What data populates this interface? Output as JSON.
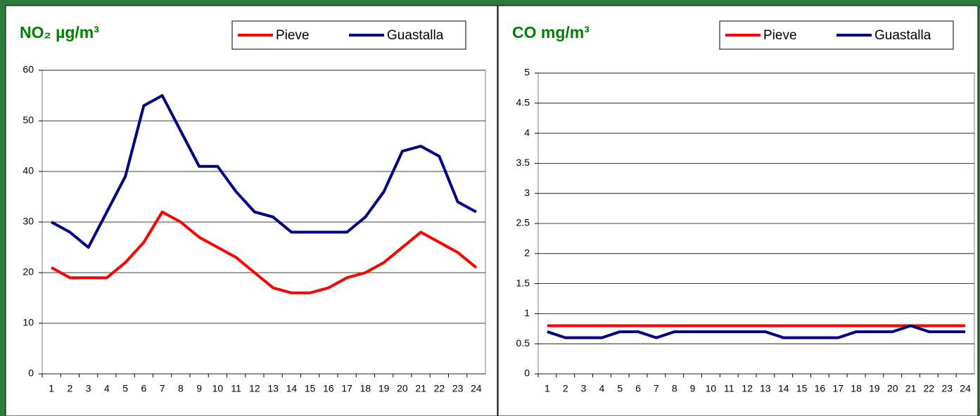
{
  "chart_data": [
    {
      "type": "line",
      "title": "NO₂ µg/m³",
      "categories": [
        "1",
        "2",
        "3",
        "4",
        "5",
        "6",
        "7",
        "8",
        "9",
        "10",
        "11",
        "12",
        "13",
        "14",
        "15",
        "16",
        "17",
        "18",
        "19",
        "20",
        "21",
        "22",
        "23",
        "24"
      ],
      "series": [
        {
          "name": "Pieve",
          "color": "#ff0000",
          "values": [
            21,
            19,
            19,
            19,
            22,
            26,
            32,
            30,
            27,
            25,
            23,
            20,
            17,
            16,
            16,
            17,
            19,
            20,
            22,
            25,
            28,
            26,
            24,
            21
          ]
        },
        {
          "name": "Guastalla",
          "color": "#000080",
          "values": [
            30,
            28,
            25,
            32,
            39,
            53,
            55,
            48,
            41,
            41,
            36,
            32,
            31,
            28,
            28,
            28,
            28,
            31,
            36,
            44,
            45,
            43,
            34,
            32
          ]
        }
      ],
      "ylim": [
        0,
        60
      ],
      "yticks": [
        0,
        10,
        20,
        30,
        40,
        50,
        60
      ],
      "grid": true,
      "legend": "top-right"
    },
    {
      "type": "line",
      "title": "CO mg/m³",
      "categories": [
        "1",
        "2",
        "3",
        "4",
        "5",
        "6",
        "7",
        "8",
        "9",
        "10",
        "11",
        "12",
        "13",
        "14",
        "15",
        "16",
        "17",
        "18",
        "19",
        "20",
        "21",
        "22",
        "23",
        "24"
      ],
      "series": [
        {
          "name": "Pieve",
          "color": "#ff0000",
          "values": [
            0.8,
            0.8,
            0.8,
            0.8,
            0.8,
            0.8,
            0.8,
            0.8,
            0.8,
            0.8,
            0.8,
            0.8,
            0.8,
            0.8,
            0.8,
            0.8,
            0.8,
            0.8,
            0.8,
            0.8,
            0.8,
            0.8,
            0.8,
            0.8
          ]
        },
        {
          "name": "Guastalla",
          "color": "#000080",
          "values": [
            0.7,
            0.6,
            0.6,
            0.6,
            0.7,
            0.7,
            0.6,
            0.7,
            0.7,
            0.7,
            0.7,
            0.7,
            0.7,
            0.6,
            0.6,
            0.6,
            0.6,
            0.7,
            0.7,
            0.7,
            0.8,
            0.7,
            0.7,
            0.7
          ]
        }
      ],
      "ylim": [
        0,
        5
      ],
      "yticks": [
        0,
        0.5,
        1,
        1.5,
        2,
        2.5,
        3,
        3.5,
        4,
        4.5,
        5
      ],
      "grid": true,
      "legend": "top-right"
    }
  ]
}
